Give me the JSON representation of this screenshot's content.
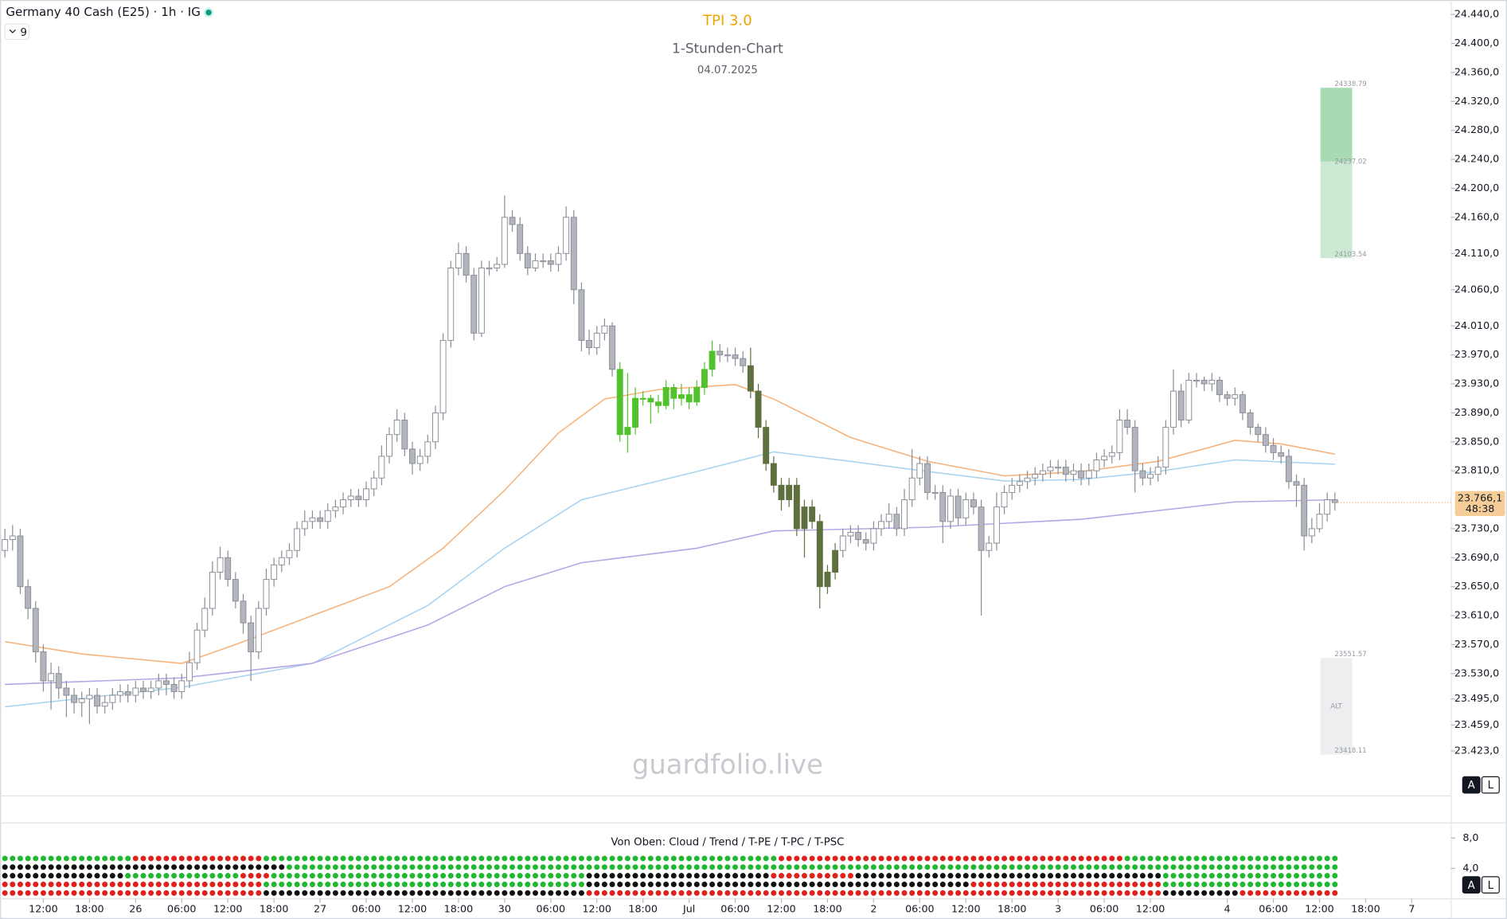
{
  "chart_data": {
    "type": "candlestick",
    "symbol": "Germany 40 Cash (E25) · 1h · IG",
    "indicator_count": "9",
    "title": "TPI 3.0",
    "subtitle": "1-Stunden-Chart",
    "date": "04.07.2025",
    "watermark": "guardfolio.live",
    "scale_buttons": [
      "A",
      "L"
    ],
    "ylim": [
      23361,
      24460
    ],
    "yticks": [
      {
        "value": 24440,
        "label": "24.440,0"
      },
      {
        "value": 24400,
        "label": "24.400,0"
      },
      {
        "value": 24360,
        "label": "24.360,0"
      },
      {
        "value": 24320,
        "label": "24.320,0"
      },
      {
        "value": 24280,
        "label": "24.280,0"
      },
      {
        "value": 24240,
        "label": "24.240,0"
      },
      {
        "value": 24200,
        "label": "24.200,0"
      },
      {
        "value": 24160,
        "label": "24.160,0"
      },
      {
        "value": 24110,
        "label": "24.110,0"
      },
      {
        "value": 24060,
        "label": "24.060,0"
      },
      {
        "value": 24010,
        "label": "24.010,0"
      },
      {
        "value": 23970,
        "label": "23.970,0"
      },
      {
        "value": 23930,
        "label": "23.930,0"
      },
      {
        "value": 23890,
        "label": "23.890,0"
      },
      {
        "value": 23850,
        "label": "23.850,0"
      },
      {
        "value": 23810,
        "label": "23.810,0"
      },
      {
        "value": 23730,
        "label": "23.730,0"
      },
      {
        "value": 23690,
        "label": "23.690,0"
      },
      {
        "value": 23650,
        "label": "23.650,0"
      },
      {
        "value": 23610,
        "label": "23.610,0"
      },
      {
        "value": 23570,
        "label": "23.570,0"
      },
      {
        "value": 23530,
        "label": "23.530,0"
      },
      {
        "value": 23495,
        "label": "23.495,0"
      },
      {
        "value": 23459,
        "label": "23.459,0"
      },
      {
        "value": 23423,
        "label": "23.423,0"
      }
    ],
    "xlim": [
      0,
      188
    ],
    "xticks": [
      {
        "value": 5,
        "label": "12:00"
      },
      {
        "value": 11,
        "label": "18:00"
      },
      {
        "value": 17,
        "label": "26"
      },
      {
        "value": 23,
        "label": "06:00"
      },
      {
        "value": 29,
        "label": "12:00"
      },
      {
        "value": 35,
        "label": "18:00"
      },
      {
        "value": 41,
        "label": "27"
      },
      {
        "value": 47,
        "label": "06:00"
      },
      {
        "value": 53,
        "label": "12:00"
      },
      {
        "value": 59,
        "label": "18:00"
      },
      {
        "value": 65,
        "label": "30"
      },
      {
        "value": 71,
        "label": "06:00"
      },
      {
        "value": 77,
        "label": "12:00"
      },
      {
        "value": 83,
        "label": "18:00"
      },
      {
        "value": 89,
        "label": "Jul"
      },
      {
        "value": 95,
        "label": "06:00"
      },
      {
        "value": 101,
        "label": "12:00"
      },
      {
        "value": 107,
        "label": "18:00"
      },
      {
        "value": 113,
        "label": "2"
      },
      {
        "value": 119,
        "label": "06:00"
      },
      {
        "value": 125,
        "label": "12:00"
      },
      {
        "value": 131,
        "label": "18:00"
      },
      {
        "value": 137,
        "label": "3"
      },
      {
        "value": 143,
        "label": "06:00"
      },
      {
        "value": 149,
        "label": "12:00"
      },
      {
        "value": 159,
        "label": "4"
      },
      {
        "value": 165,
        "label": "06:00"
      },
      {
        "value": 171,
        "label": "12:00"
      },
      {
        "value": 177,
        "label": "18:00"
      },
      {
        "value": 183,
        "label": "7"
      }
    ],
    "up_color": "#ffffff",
    "down_color": "#b2b5be",
    "wick_color": "#8a8d96",
    "colored_segments": [
      {
        "from": 80,
        "to": 92,
        "color": "#52c22c"
      },
      {
        "from": 97,
        "to": 108,
        "color": "#5f7040"
      }
    ],
    "open": [
      23700,
      23715,
      23720,
      23650,
      23620,
      23560,
      23520,
      23530,
      23510,
      23500,
      23490,
      23495,
      23500,
      23485,
      23490,
      23500,
      23505,
      23500,
      23510,
      23505,
      23510,
      23520,
      23515,
      23505,
      23520,
      23545,
      23590,
      23620,
      23670,
      23690,
      23660,
      23630,
      23600,
      23560,
      23620,
      23660,
      23680,
      23690,
      23700,
      23730,
      23740,
      23745,
      23740,
      23755,
      23760,
      23770,
      23775,
      23770,
      23785,
      23800,
      23830,
      23860,
      23880,
      23840,
      23820,
      23830,
      23850,
      23890,
      23990,
      24090,
      24110,
      24080,
      24000,
      24090,
      24090,
      24095,
      24160,
      24150,
      24110,
      24090,
      24100,
      24100,
      24095,
      24110,
      24160,
      24060,
      23990,
      23980,
      24000,
      24010,
      23950,
      23860,
      23870,
      23910,
      23910,
      23905,
      23900,
      23925,
      23910,
      23915,
      23905,
      23925,
      23950,
      23975,
      23970,
      23970,
      23965,
      23955,
      23920,
      23870,
      23820,
      23790,
      23770,
      23790,
      23730,
      23760,
      23740,
      23650,
      23670,
      23700,
      23720,
      23725,
      23715,
      23710,
      23730,
      23740,
      23750,
      23730,
      23770,
      23800,
      23820,
      23780,
      23780,
      23740,
      23775,
      23745,
      23770,
      23760,
      23700,
      23710,
      23760,
      23780,
      23790,
      23795,
      23800,
      23805,
      23810,
      23815,
      23815,
      23805,
      23810,
      23800,
      23810,
      23825,
      23830,
      23835,
      23880,
      23870,
      23810,
      23800,
      23805,
      23815,
      23870,
      23920,
      23880,
      23935,
      23935,
      23930,
      23935,
      23915,
      23910,
      23915,
      23890,
      23870,
      23860,
      23845,
      23835,
      23830,
      23795,
      23790,
      23720,
      23730,
      23750,
      23770
    ],
    "high": [
      23730,
      23735,
      23730,
      23660,
      23630,
      23570,
      23545,
      23540,
      23520,
      23510,
      23505,
      23510,
      23510,
      23500,
      23510,
      23515,
      23515,
      23520,
      23520,
      23520,
      23530,
      23530,
      23525,
      23530,
      23560,
      23600,
      23635,
      23685,
      23705,
      23700,
      23670,
      23640,
      23610,
      23630,
      23675,
      23690,
      23700,
      23710,
      23740,
      23755,
      23755,
      23755,
      23765,
      23770,
      23780,
      23785,
      23785,
      23795,
      23810,
      23845,
      23870,
      23895,
      23890,
      23850,
      23840,
      23860,
      23900,
      24000,
      24100,
      24125,
      24120,
      24090,
      24100,
      24100,
      24105,
      24190,
      24170,
      24160,
      24120,
      24110,
      24110,
      24110,
      24120,
      24175,
      24170,
      24070,
      24005,
      24010,
      24020,
      24015,
      23960,
      23945,
      23925,
      23920,
      23915,
      23915,
      23935,
      23930,
      23930,
      23925,
      23935,
      23960,
      23990,
      23985,
      23980,
      23980,
      23975,
      23980,
      23930,
      23880,
      23830,
      23800,
      23800,
      23800,
      23770,
      23770,
      23750,
      23680,
      23710,
      23730,
      23735,
      23735,
      23725,
      23740,
      23750,
      23765,
      23760,
      23785,
      23840,
      23830,
      23830,
      23790,
      23790,
      23785,
      23785,
      23780,
      23780,
      23770,
      23720,
      23780,
      23790,
      23800,
      23805,
      23810,
      23815,
      23820,
      23825,
      23825,
      23825,
      23820,
      23820,
      23820,
      23835,
      23840,
      23845,
      23895,
      23895,
      23880,
      23820,
      23815,
      23830,
      23880,
      23950,
      23930,
      23945,
      23945,
      23940,
      23945,
      23940,
      23920,
      23925,
      23920,
      23895,
      23875,
      23870,
      23855,
      23845,
      23840,
      23805,
      23800,
      23745,
      23765,
      23780,
      23780
    ],
    "low": [
      23690,
      23700,
      23640,
      23605,
      23545,
      23505,
      23480,
      23495,
      23470,
      23475,
      23470,
      23460,
      23475,
      23475,
      23480,
      23490,
      23490,
      23490,
      23495,
      23495,
      23500,
      23500,
      23495,
      23495,
      23510,
      23535,
      23580,
      23610,
      23660,
      23650,
      23620,
      23585,
      23520,
      23550,
      23610,
      23650,
      23670,
      23680,
      23690,
      23720,
      23730,
      23730,
      23730,
      23745,
      23750,
      23760,
      23760,
      23760,
      23775,
      23790,
      23820,
      23850,
      23830,
      23805,
      23810,
      23820,
      23840,
      23880,
      23980,
      24080,
      24070,
      23990,
      23995,
      24080,
      24085,
      24090,
      24140,
      24100,
      24080,
      24085,
      24090,
      24085,
      24085,
      24100,
      24040,
      23975,
      23970,
      23970,
      23990,
      23940,
      23850,
      23835,
      23860,
      23900,
      23875,
      23890,
      23895,
      23895,
      23900,
      23895,
      23900,
      23915,
      23940,
      23960,
      23960,
      23955,
      23945,
      23910,
      23855,
      23810,
      23780,
      23755,
      23760,
      23720,
      23690,
      23730,
      23620,
      23640,
      23660,
      23690,
      23710,
      23705,
      23700,
      23700,
      23720,
      23730,
      23720,
      23720,
      23760,
      23790,
      23770,
      23770,
      23710,
      23730,
      23735,
      23735,
      23750,
      23610,
      23690,
      23700,
      23750,
      23770,
      23780,
      23785,
      23790,
      23795,
      23800,
      23805,
      23795,
      23795,
      23790,
      23790,
      23800,
      23815,
      23820,
      23825,
      23860,
      23780,
      23790,
      23790,
      23795,
      23805,
      23860,
      23870,
      23875,
      23925,
      23920,
      23920,
      23905,
      23900,
      23900,
      23880,
      23860,
      23850,
      23835,
      23825,
      23820,
      23785,
      23760,
      23700,
      23710,
      23725,
      23740,
      23755
    ],
    "close": [
      23715,
      23720,
      23650,
      23620,
      23560,
      23520,
      23530,
      23510,
      23500,
      23490,
      23495,
      23500,
      23485,
      23490,
      23500,
      23505,
      23500,
      23510,
      23505,
      23510,
      23520,
      23515,
      23505,
      23520,
      23545,
      23590,
      23620,
      23670,
      23690,
      23660,
      23630,
      23600,
      23560,
      23620,
      23660,
      23680,
      23690,
      23700,
      23730,
      23740,
      23745,
      23740,
      23755,
      23760,
      23770,
      23775,
      23770,
      23785,
      23800,
      23830,
      23860,
      23880,
      23840,
      23820,
      23830,
      23850,
      23890,
      23990,
      24090,
      24110,
      24080,
      24000,
      24090,
      24090,
      24095,
      24160,
      24150,
      24110,
      24090,
      24100,
      24100,
      24095,
      24110,
      24160,
      24060,
      23990,
      23980,
      24000,
      24010,
      23950,
      23860,
      23870,
      23910,
      23910,
      23905,
      23900,
      23925,
      23910,
      23915,
      23905,
      23925,
      23950,
      23975,
      23970,
      23970,
      23965,
      23955,
      23920,
      23870,
      23820,
      23790,
      23770,
      23790,
      23730,
      23760,
      23740,
      23650,
      23670,
      23700,
      23720,
      23725,
      23715,
      23710,
      23730,
      23740,
      23750,
      23730,
      23770,
      23800,
      23820,
      23780,
      23780,
      23740,
      23775,
      23745,
      23770,
      23760,
      23700,
      23710,
      23760,
      23780,
      23790,
      23795,
      23800,
      23805,
      23810,
      23815,
      23815,
      23805,
      23810,
      23800,
      23810,
      23825,
      23830,
      23835,
      23880,
      23870,
      23810,
      23800,
      23805,
      23815,
      23870,
      23920,
      23880,
      23935,
      23935,
      23930,
      23935,
      23915,
      23910,
      23915,
      23890,
      23870,
      23860,
      23845,
      23835,
      23830,
      23795,
      23790,
      23720,
      23730,
      23750,
      23770,
      23766.1
    ],
    "series": [
      {
        "color": "#f7b27a",
        "x": [
          0,
          10,
          23,
          30,
          40,
          50,
          57,
          65,
          72,
          78,
          85,
          95,
          100,
          110,
          120,
          130,
          140,
          150,
          160,
          166,
          173
        ],
        "values": [
          23574,
          23557,
          23544,
          23570,
          23610,
          23650,
          23703,
          23783,
          23862,
          23909,
          23922,
          23929,
          23909,
          23856,
          23823,
          23803,
          23809,
          23823,
          23852,
          23847,
          23833
        ]
      },
      {
        "color": "#a9d3ee",
        "x": [
          0,
          23,
          40,
          55,
          65,
          75,
          90,
          100,
          110,
          120,
          130,
          140,
          150,
          160,
          173
        ],
        "values": [
          23484,
          23511,
          23544,
          23624,
          23703,
          23770,
          23809,
          23836,
          23823,
          23809,
          23796,
          23798,
          23809,
          23825,
          23819
        ]
      },
      {
        "color": "#b6a6e6",
        "x": [
          0,
          23,
          40,
          55,
          65,
          75,
          90,
          100,
          120,
          140,
          160,
          173
        ],
        "values": [
          23515,
          23524,
          23544,
          23597,
          23650,
          23683,
          23703,
          23727,
          23732,
          23743,
          23767,
          23770
        ]
      }
    ],
    "zones": [
      {
        "top": 24338.79,
        "mid": 24237.02,
        "bottom": 24103.54,
        "color": "#8fd19e"
      },
      {
        "top": 23551.57,
        "label": "ALT",
        "bottom": 23418.11,
        "color": "#e6e7ea"
      }
    ],
    "last_price": {
      "value": 23766.1,
      "label": "23.766,1"
    },
    "countdown": "48:38",
    "panel": {
      "title": "Von Oben: Cloud / Trend / T-PE / T-PC / T-PSC",
      "yticks": [
        {
          "value": 8,
          "label": "8,0"
        },
        {
          "value": 4,
          "label": "4,0"
        }
      ],
      "ylim": [
        0,
        10
      ],
      "rows": [
        [
          {
            "color": "#1fb830",
            "count": 17
          },
          {
            "color": "#e0201b",
            "count": 17
          },
          {
            "color": "#1fb830",
            "count": 67
          },
          {
            "color": "#e0201b",
            "count": 45
          },
          {
            "color": "#1fb830",
            "count": 28
          }
        ],
        [
          {
            "color": "#111111",
            "count": 37
          },
          {
            "color": "#1fb830",
            "count": 137
          }
        ],
        [
          {
            "color": "#111111",
            "count": 16
          },
          {
            "color": "#1fb830",
            "count": 15
          },
          {
            "color": "#e0201b",
            "count": 4
          },
          {
            "color": "#1fb830",
            "count": 41
          },
          {
            "color": "#111111",
            "count": 24
          },
          {
            "color": "#e0201b",
            "count": 11
          },
          {
            "color": "#111111",
            "count": 40
          },
          {
            "color": "#1fb830",
            "count": 23
          }
        ],
        [
          {
            "color": "#e0201b",
            "count": 34
          },
          {
            "color": "#1fb830",
            "count": 42
          },
          {
            "color": "#111111",
            "count": 50
          },
          {
            "color": "#e0201b",
            "count": 25
          },
          {
            "color": "#1fb830",
            "count": 23
          }
        ],
        [
          {
            "color": "#e0201b",
            "count": 34
          },
          {
            "color": "#111111",
            "count": 42
          },
          {
            "color": "#e0201b",
            "count": 75
          },
          {
            "color": "#111111",
            "count": 10
          },
          {
            "color": "#e0201b",
            "count": 13
          }
        ]
      ]
    }
  }
}
